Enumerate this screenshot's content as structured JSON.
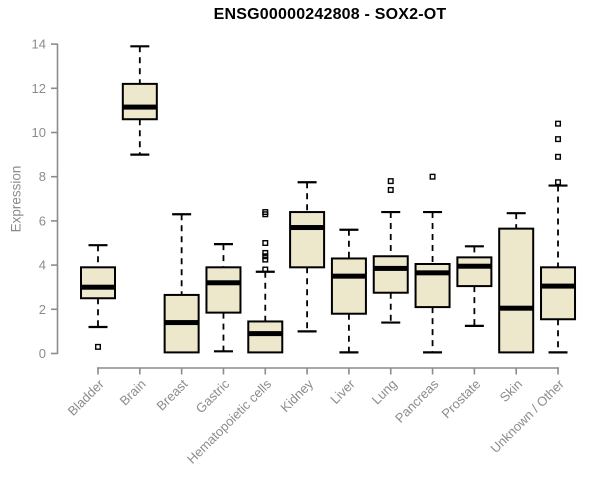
{
  "figure": {
    "background": "#ffffff"
  },
  "chart_data": {
    "type": "boxplot",
    "title": "ENSG00000242808 - SOX2-OT",
    "ylabel": "Expression",
    "xlabel": "",
    "ylim": [
      0,
      14
    ],
    "yticks": [
      0,
      2,
      4,
      6,
      8,
      10,
      12,
      14
    ],
    "grid": false,
    "legend": "none",
    "box_fill": "#ede8cc",
    "box_border": "#000000",
    "median_color": "#000000",
    "axis_color": "#8c8c8c",
    "categories": [
      "Bladder",
      "Brain",
      "Breast",
      "Gastric",
      "Hematopoietic cells",
      "Kidney",
      "Liver",
      "Lung",
      "Pancreas",
      "Prostate",
      "Skin",
      "Unknown / Other"
    ],
    "series": [
      {
        "category": "Bladder",
        "whisker_low": 1.2,
        "q1": 2.5,
        "median": 3.0,
        "q3": 3.9,
        "whisker_high": 4.9,
        "outliers": [
          0.3
        ]
      },
      {
        "category": "Brain",
        "whisker_low": 9.0,
        "q1": 10.6,
        "median": 11.15,
        "q3": 12.2,
        "whisker_high": 13.9,
        "outliers": []
      },
      {
        "category": "Breast",
        "whisker_low": 0.05,
        "q1": 0.05,
        "median": 1.4,
        "q3": 2.65,
        "whisker_high": 6.3,
        "outliers": []
      },
      {
        "category": "Gastric",
        "whisker_low": 0.1,
        "q1": 1.85,
        "median": 3.2,
        "q3": 3.9,
        "whisker_high": 4.95,
        "outliers": []
      },
      {
        "category": "Hematopoietic cells",
        "whisker_low": 0.05,
        "q1": 0.05,
        "median": 0.9,
        "q3": 1.45,
        "whisker_high": 3.7,
        "outliers": [
          6.4,
          6.3,
          5.0,
          4.55,
          4.4,
          4.25,
          3.8
        ]
      },
      {
        "category": "Kidney",
        "whisker_low": 1.0,
        "q1": 3.9,
        "median": 5.7,
        "q3": 6.4,
        "whisker_high": 7.75,
        "outliers": []
      },
      {
        "category": "Liver",
        "whisker_low": 0.05,
        "q1": 1.8,
        "median": 3.5,
        "q3": 4.3,
        "whisker_high": 5.6,
        "outliers": []
      },
      {
        "category": "Lung",
        "whisker_low": 1.4,
        "q1": 2.75,
        "median": 3.85,
        "q3": 4.4,
        "whisker_high": 6.4,
        "outliers": [
          7.8,
          7.4
        ]
      },
      {
        "category": "Pancreas",
        "whisker_low": 0.05,
        "q1": 2.1,
        "median": 3.65,
        "q3": 4.05,
        "whisker_high": 6.4,
        "outliers": [
          8.0
        ]
      },
      {
        "category": "Prostate",
        "whisker_low": 1.25,
        "q1": 3.05,
        "median": 3.95,
        "q3": 4.35,
        "whisker_high": 4.85,
        "outliers": []
      },
      {
        "category": "Skin",
        "whisker_low": 0.05,
        "q1": 0.05,
        "median": 2.05,
        "q3": 5.65,
        "whisker_high": 6.35,
        "outliers": []
      },
      {
        "category": "Unknown / Other",
        "whisker_low": 0.05,
        "q1": 1.55,
        "median": 3.05,
        "q3": 3.9,
        "whisker_high": 7.6,
        "outliers": [
          10.4,
          9.7,
          8.9,
          7.75
        ]
      }
    ]
  }
}
